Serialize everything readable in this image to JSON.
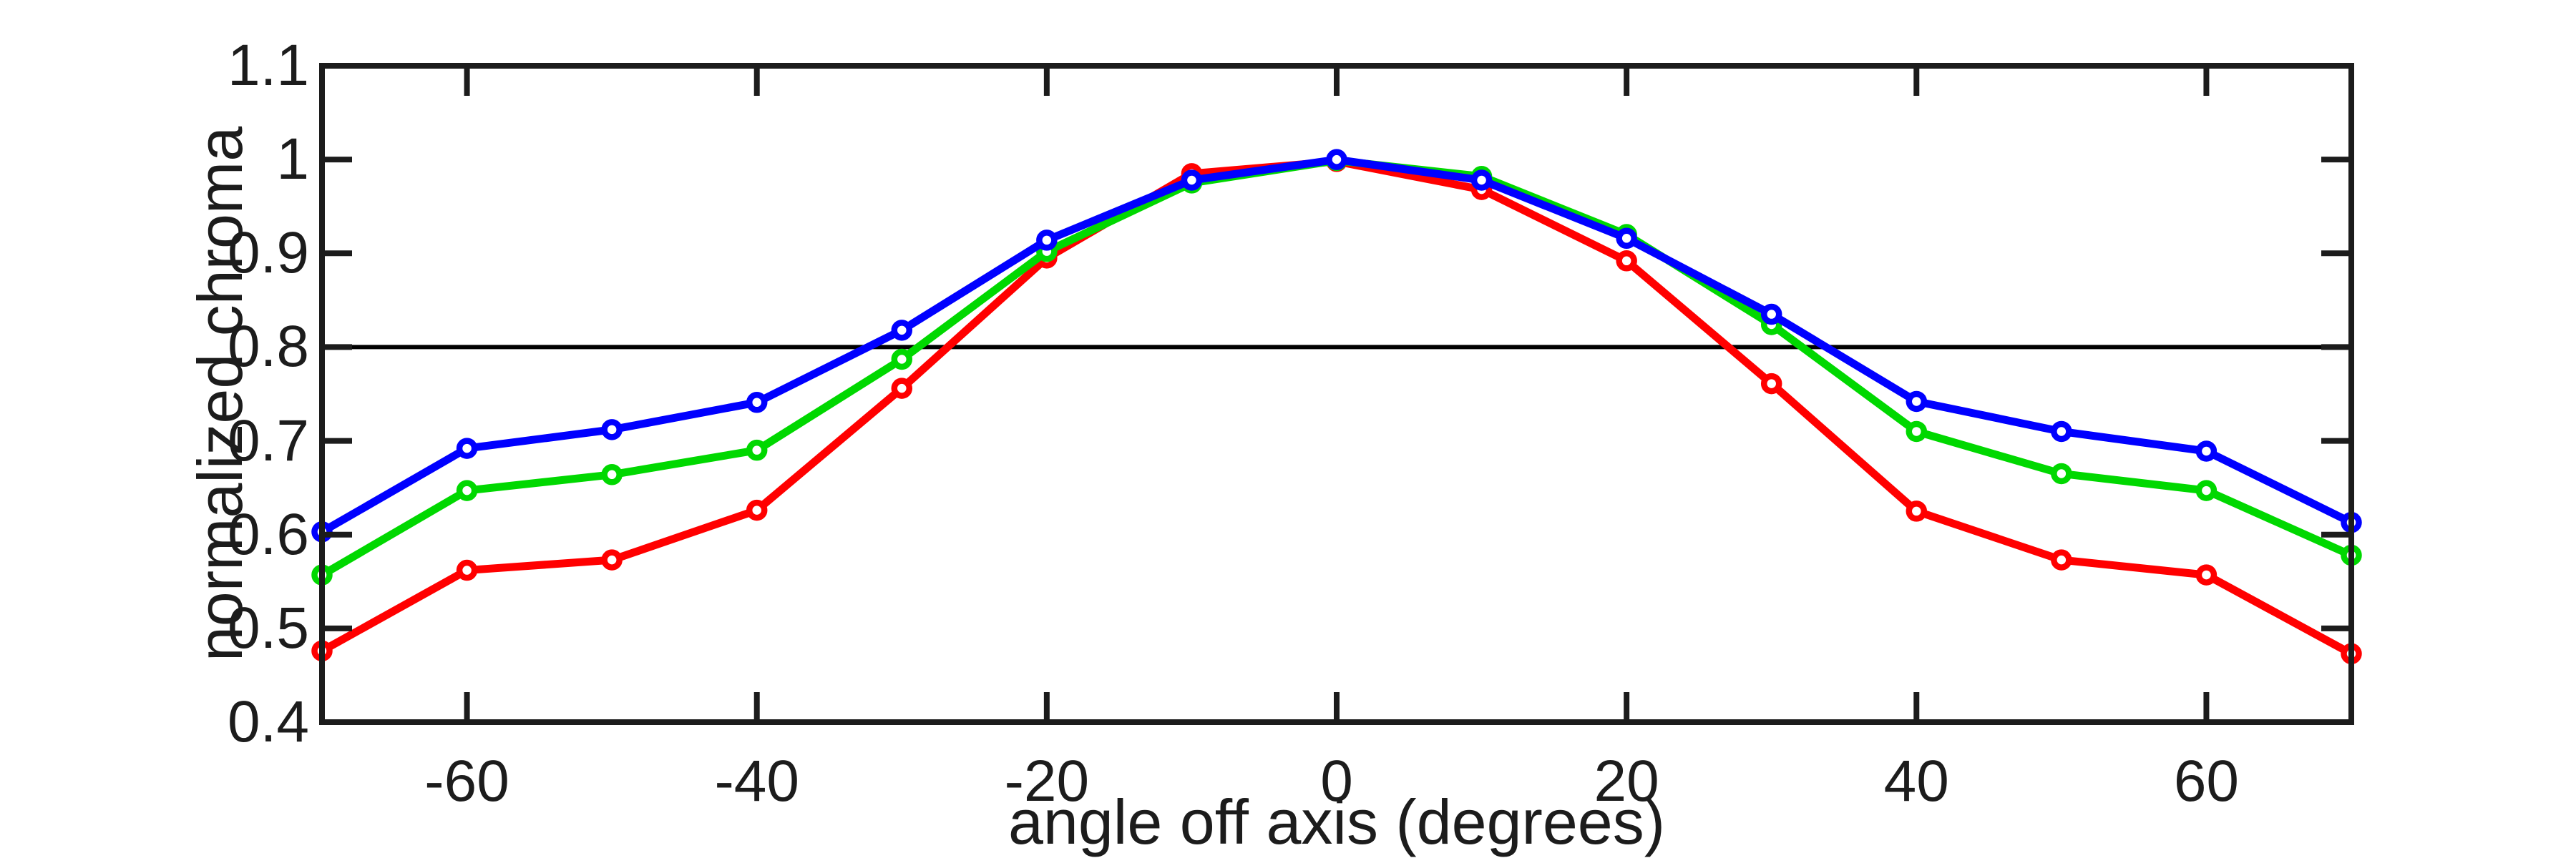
{
  "chart_data": {
    "type": "line",
    "title": "",
    "xlabel": "angle off axis (degrees)",
    "ylabel": "normalized chroma",
    "xlim": [
      -70,
      70
    ],
    "ylim": [
      0.4,
      1.1
    ],
    "grid": false,
    "legend": null,
    "background_color": "#ffffff",
    "axis_color": "#1c1c1c",
    "xticks": [
      -60,
      -40,
      -20,
      0,
      20,
      40,
      60
    ],
    "xtick_labels": [
      "-60",
      "-40",
      "-20",
      "0",
      "20",
      "40",
      "60"
    ],
    "yticks": [
      0.4,
      0.5,
      0.6,
      0.7,
      0.8,
      0.9,
      1,
      1.1
    ],
    "ytick_labels": [
      "0.4",
      "0.5",
      "0.6",
      "0.7",
      "0.8",
      "0.9",
      "1",
      "1.1"
    ],
    "reference_line": {
      "y": 0.8,
      "color": "#000000"
    },
    "marker": "open-circle",
    "x": [
      -70,
      -60,
      -50,
      -40,
      -30,
      -20,
      -10,
      0,
      10,
      20,
      30,
      40,
      50,
      60,
      70
    ],
    "series": [
      {
        "name": "red",
        "color": "#ff0000",
        "values": [
          0.476,
          0.562,
          0.573,
          0.626,
          0.756,
          0.895,
          0.985,
          0.998,
          0.968,
          0.892,
          0.761,
          0.625,
          0.573,
          0.557,
          0.473
        ]
      },
      {
        "name": "green",
        "color": "#00d800",
        "values": [
          0.557,
          0.647,
          0.664,
          0.69,
          0.787,
          0.902,
          0.975,
          0.999,
          0.982,
          0.92,
          0.824,
          0.71,
          0.665,
          0.647,
          0.578
        ]
      },
      {
        "name": "blue",
        "color": "#0000ff",
        "values": [
          0.603,
          0.692,
          0.712,
          0.741,
          0.818,
          0.914,
          0.978,
          1.0,
          0.978,
          0.916,
          0.835,
          0.742,
          0.71,
          0.689,
          0.613
        ]
      }
    ]
  }
}
